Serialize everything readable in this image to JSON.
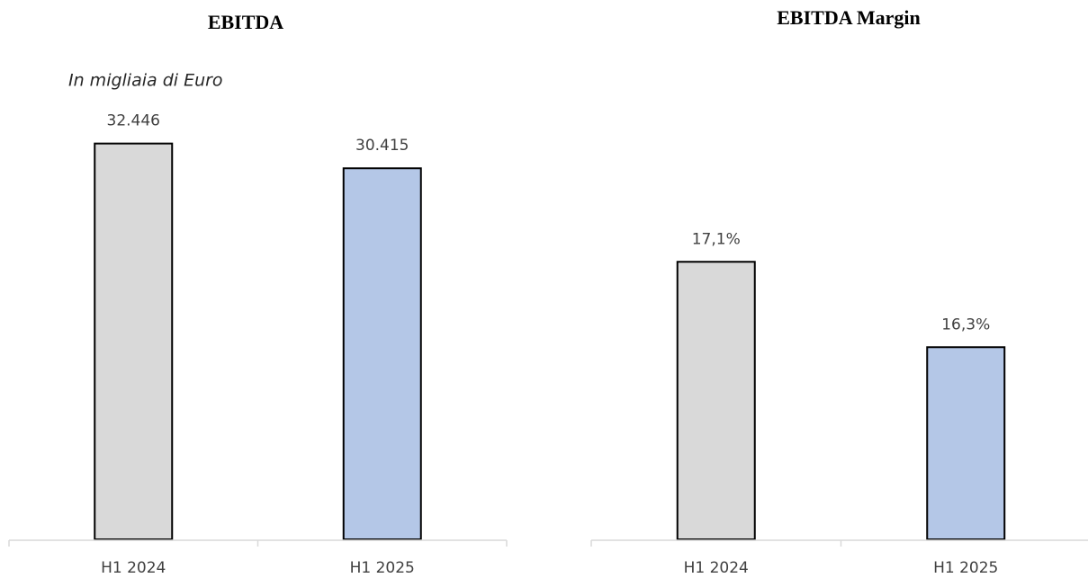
{
  "chart_data": [
    {
      "type": "bar",
      "title": "EBITDA",
      "subtitle": "In migliaia di Euro",
      "categories": [
        "H1 2024",
        "H1 2025"
      ],
      "values": [
        32446,
        30415
      ],
      "value_labels": [
        "32.446",
        "30.415"
      ],
      "colors": [
        "#d9d9d9",
        "#b4c7e7"
      ],
      "ylim": [
        0,
        35000
      ]
    },
    {
      "type": "bar",
      "title": "EBITDA Margin",
      "categories": [
        "H1 2024",
        "H1 2025"
      ],
      "values": [
        17.1,
        16.3
      ],
      "value_labels": [
        "17,1%",
        "16,3%"
      ],
      "colors": [
        "#d9d9d9",
        "#b4c7e7"
      ],
      "ylim": [
        14.5,
        18.5
      ]
    }
  ]
}
